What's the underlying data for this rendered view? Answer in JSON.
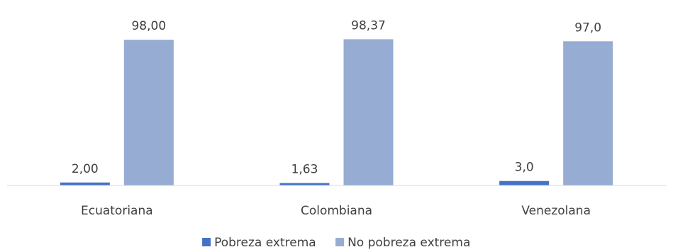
{
  "chart_data": {
    "type": "bar",
    "categories": [
      "Ecuatoriana",
      "Colombiana",
      "Venezolana"
    ],
    "series": [
      {
        "name": "Pobreza extrema",
        "values": [
          2.0,
          1.63,
          3.0
        ],
        "labels": [
          "2,00",
          "1,63",
          "3,0"
        ],
        "color": "#4472c4"
      },
      {
        "name": "No pobreza extrema",
        "values": [
          98.0,
          98.37,
          97.0
        ],
        "labels": [
          "98,00",
          "98,37",
          "97,0"
        ],
        "color": "#97acd3"
      }
    ],
    "title": "",
    "xlabel": "",
    "ylabel": "",
    "ylim": [
      0,
      100
    ],
    "grid": false,
    "legend": "bottom-center"
  }
}
